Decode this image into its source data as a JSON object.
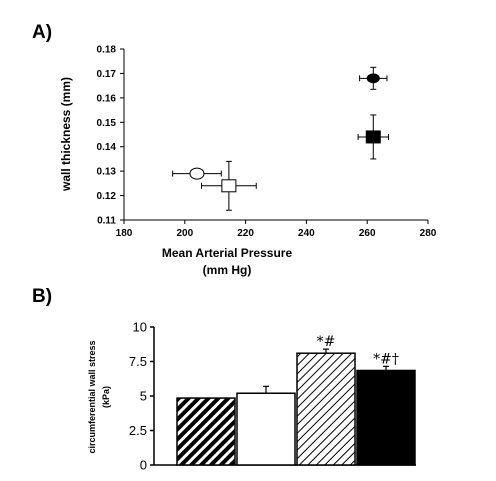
{
  "chart_data": [
    {
      "panel": "A)",
      "type": "scatter",
      "xlabel": [
        "Mean Arterial Pressure",
        "(mm Hg)"
      ],
      "ylabel": "wall thickness (mm)",
      "xlim": [
        180,
        280
      ],
      "ylim": [
        0.11,
        0.18
      ],
      "xticks": [
        "180",
        "200",
        "220",
        "240",
        "260",
        "280"
      ],
      "yticks": [
        "0.11",
        "0.12",
        "0.13",
        "0.14",
        "0.15",
        "0.16",
        "0.17",
        "0.18"
      ],
      "points": [
        {
          "marker": "open-circle",
          "x": 204,
          "y": 0.129,
          "xerr": 8,
          "yerr": 0
        },
        {
          "marker": "open-square",
          "x": 214.5,
          "y": 0.124,
          "xerr": 9,
          "yerr": 0.01
        },
        {
          "marker": "filled-circle",
          "x": 262,
          "y": 0.168,
          "xerr": 4.5,
          "yerr": 0.0045
        },
        {
          "marker": "filled-square",
          "x": 262,
          "y": 0.144,
          "xerr": 5,
          "yerr": 0.009
        }
      ]
    },
    {
      "panel": "B)",
      "type": "bar",
      "ylabel": [
        "circumferential wall stress",
        "(kPa)"
      ],
      "ylim": [
        0,
        10
      ],
      "yticks": [
        "0",
        "2.5",
        "5",
        "7.5",
        "10"
      ],
      "bars": [
        {
          "style": "dense-hatch",
          "value": 4.85,
          "err": 0,
          "annotation": ""
        },
        {
          "style": "open",
          "value": 5.2,
          "err": 0.5,
          "annotation": ""
        },
        {
          "style": "light-hatch",
          "value": 8.1,
          "err": 0.3,
          "annotation": "*#"
        },
        {
          "style": "filled",
          "value": 6.85,
          "err": 0.3,
          "annotation": "*#†"
        }
      ]
    }
  ]
}
